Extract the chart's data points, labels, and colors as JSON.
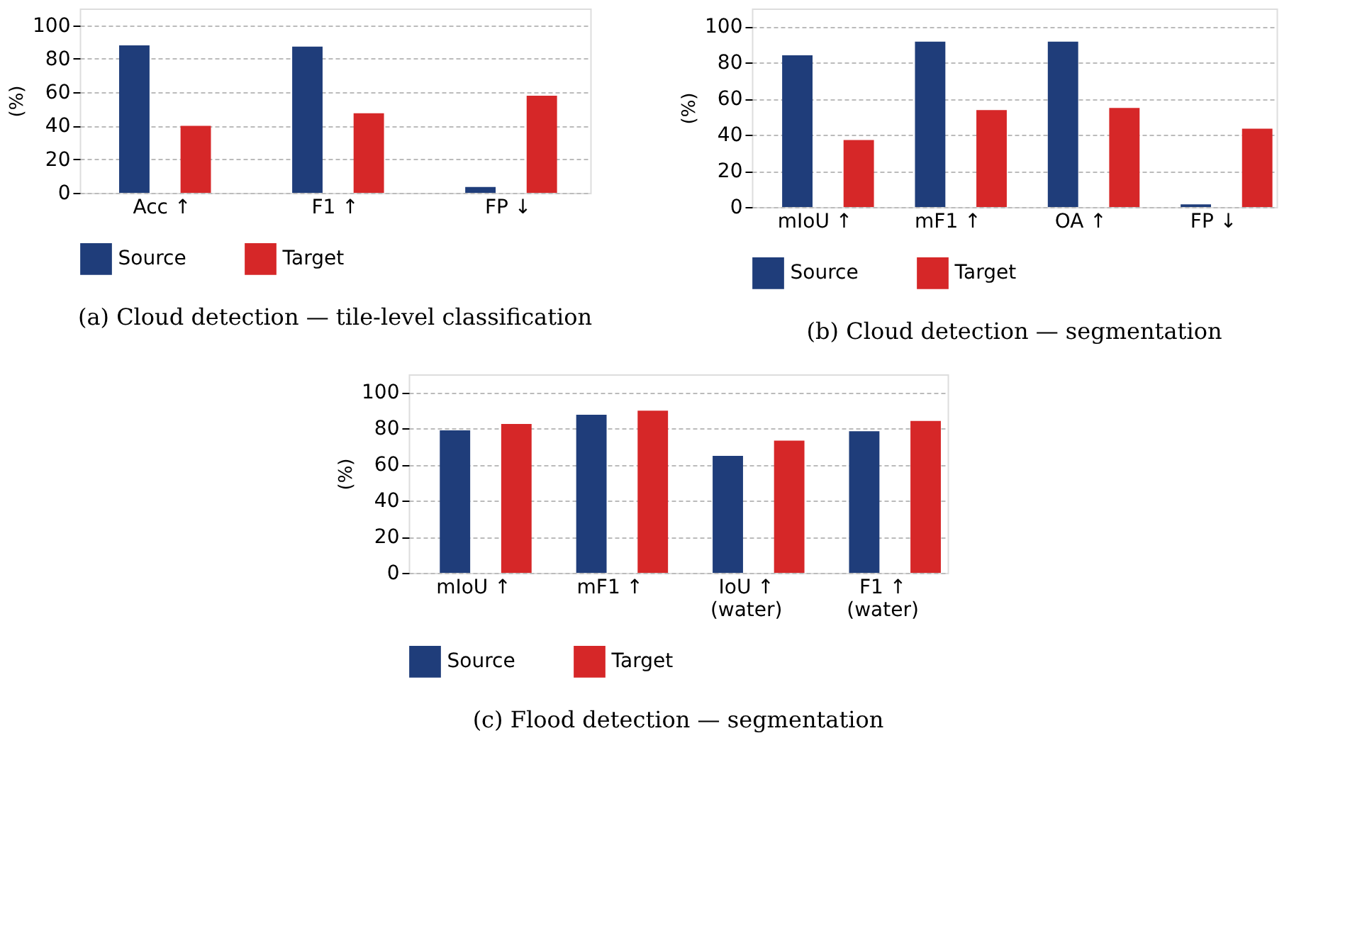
{
  "chart_data": [
    {
      "type": "bar",
      "title": "(a) Cloud detection — tile-level classification",
      "ylabel": "(%)",
      "categories": [
        "Acc ↑",
        "F1 ↑",
        "FP ↓"
      ],
      "series": [
        {
          "name": "Source",
          "color": "#1f3d7a",
          "values": [
            88,
            87.3,
            3.5
          ]
        },
        {
          "name": "Target",
          "color": "#d62728",
          "values": [
            40,
            47.5,
            58
          ]
        }
      ],
      "ylim": [
        0,
        110
      ],
      "yticks": [
        0,
        20,
        40,
        60,
        80,
        100
      ],
      "grid": "y",
      "legend": "bottom"
    },
    {
      "type": "bar",
      "title": "(b) Cloud detection — segmentation",
      "ylabel": "(%)",
      "categories": [
        "mIoU ↑",
        "mF1 ↑",
        "OA ↑",
        "FP ↓"
      ],
      "series": [
        {
          "name": "Source",
          "color": "#1f3d7a",
          "values": [
            84.1,
            91.6,
            91.6,
            1.5
          ]
        },
        {
          "name": "Target",
          "color": "#d62728",
          "values": [
            37.1,
            53.7,
            54.9,
            43.4
          ]
        }
      ],
      "ylim": [
        0,
        110
      ],
      "yticks": [
        0,
        20,
        40,
        60,
        80,
        100
      ],
      "grid": "y",
      "legend": "bottom"
    },
    {
      "type": "bar",
      "title": "(c) Flood detection — segmentation",
      "ylabel": "(%)",
      "categories": [
        "mIoU ↑",
        "mF1 ↑",
        "IoU ↑\n(water)",
        "F1 ↑\n(water)"
      ],
      "series": [
        {
          "name": "Source",
          "color": "#1f3d7a",
          "values": [
            79,
            87.6,
            64.8,
            78.5
          ]
        },
        {
          "name": "Target",
          "color": "#d62728",
          "values": [
            82.5,
            89.9,
            73.3,
            84.2
          ]
        }
      ],
      "ylim": [
        0,
        110
      ],
      "yticks": [
        0,
        20,
        40,
        60,
        80,
        100
      ],
      "grid": "y",
      "legend": "bottom"
    }
  ]
}
